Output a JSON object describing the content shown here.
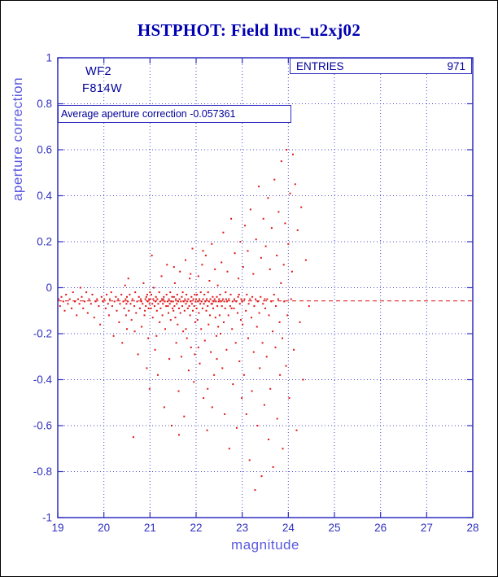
{
  "title": "HSTPHOT: Field lmc_u2xj02",
  "colors": {
    "title": "#0000b3",
    "axis": "#2f2fbf",
    "grid": "#4a4acf",
    "tick_label": "#2f2fbf",
    "axis_label": "#5a5ae0",
    "annotation": "#000099",
    "point": "#e11414",
    "average_line": "#e11414",
    "page_border": "#000000"
  },
  "stats_box": {
    "label": "ENTRIES",
    "value": "971"
  },
  "labels": {
    "detector": "WF2",
    "filter": "F814W",
    "average_text": "Average aperture correction -0.057361"
  },
  "chart_data": {
    "type": "scatter",
    "title": "HSTPHOT: Field lmc_u2xj02",
    "xlabel": "magnitude",
    "ylabel": "aperture correction",
    "xlim": [
      19,
      28
    ],
    "ylim": [
      -1,
      1
    ],
    "x_ticks": [
      19,
      20,
      21,
      22,
      23,
      24,
      25,
      26,
      27,
      28
    ],
    "x_tick_labels": [
      "19",
      "20",
      "21",
      "22",
      "23",
      "24",
      "25",
      "26",
      "27",
      "28"
    ],
    "y_ticks": [
      1,
      0.8,
      0.6,
      0.4,
      0.2,
      0,
      -0.2,
      -0.4,
      -0.6,
      -0.8,
      -1
    ],
    "y_tick_labels": [
      "1",
      "0.8",
      "0.6",
      "0.4",
      "0.2",
      "0",
      "-0.2",
      "-0.4",
      "-0.6",
      "-0.8",
      "-1"
    ],
    "grid": "dotted",
    "legend": "none",
    "entries": 971,
    "average_aperture_correction": -0.057361,
    "average_line": {
      "y": -0.057361,
      "style": "dashed",
      "color": "#e11414"
    },
    "annotations": [
      "WF2",
      "F814W",
      "Average aperture correction -0.057361",
      "ENTRIES 971"
    ],
    "points": [
      [
        19.02,
        -0.05
      ],
      [
        19.05,
        -0.08
      ],
      [
        19.08,
        -0.04
      ],
      [
        19.12,
        -0.06
      ],
      [
        19.15,
        -0.1
      ],
      [
        19.18,
        -0.03
      ],
      [
        19.22,
        -0.07
      ],
      [
        19.26,
        -0.05
      ],
      [
        19.3,
        -0.09
      ],
      [
        19.33,
        -0.02
      ],
      [
        19.37,
        -0.06
      ],
      [
        19.41,
        -0.12
      ],
      [
        19.44,
        -0.05
      ],
      [
        19.47,
        -0.07
      ],
      [
        19.49,
        0.0
      ],
      [
        19.52,
        -0.04
      ],
      [
        19.55,
        -0.09
      ],
      [
        19.58,
        -0.06
      ],
      [
        19.62,
        -0.02
      ],
      [
        19.65,
        -0.11
      ],
      [
        19.68,
        -0.05
      ],
      [
        19.72,
        -0.07
      ],
      [
        19.75,
        -0.03
      ],
      [
        19.79,
        -0.13
      ],
      [
        19.82,
        -0.06
      ],
      [
        19.85,
        -0.05
      ],
      [
        19.89,
        -0.08
      ],
      [
        19.92,
        -0.16
      ],
      [
        19.95,
        -0.04
      ],
      [
        19.98,
        -0.06
      ],
      [
        20.01,
        -0.05
      ],
      [
        20.04,
        -0.09
      ],
      [
        20.06,
        -0.03
      ],
      [
        20.09,
        -0.07
      ],
      [
        20.11,
        -0.12
      ],
      [
        20.13,
        -0.05
      ],
      [
        20.16,
        -0.02
      ],
      [
        20.18,
        -0.08
      ],
      [
        20.21,
        -0.21
      ],
      [
        20.23,
        -0.06
      ],
      [
        20.26,
        -0.04
      ],
      [
        20.28,
        -0.1
      ],
      [
        20.31,
        -0.05
      ],
      [
        20.33,
        -0.15
      ],
      [
        20.35,
        -0.07
      ],
      [
        20.38,
        -0.03
      ],
      [
        20.4,
        -0.24
      ],
      [
        20.42,
        -0.06
      ],
      [
        20.44,
        -0.09
      ],
      [
        20.46,
        0.01
      ],
      [
        20.47,
        -0.05
      ],
      [
        20.48,
        -0.12
      ],
      [
        20.49,
        -0.07
      ],
      [
        20.5,
        -0.04
      ],
      [
        20.5,
        -0.18
      ],
      [
        20.52,
        -0.06
      ],
      [
        20.54,
        -0.1
      ],
      [
        20.56,
        -0.03
      ],
      [
        20.58,
        -0.07
      ],
      [
        20.6,
        -0.14
      ],
      [
        20.62,
        -0.05
      ],
      [
        20.64,
        -0.65
      ],
      [
        20.66,
        -0.08
      ],
      [
        20.68,
        -0.02
      ],
      [
        20.7,
        -0.11
      ],
      [
        20.72,
        -0.06
      ],
      [
        20.74,
        -0.29
      ],
      [
        20.76,
        -0.04
      ],
      [
        20.78,
        -0.09
      ],
      [
        20.8,
        -0.05
      ],
      [
        20.82,
        -0.17
      ],
      [
        20.84,
        -0.07
      ],
      [
        20.86,
        0.02
      ],
      [
        20.88,
        -0.12
      ],
      [
        20.9,
        -0.05
      ],
      [
        20.91,
        -0.08
      ],
      [
        20.93,
        -0.35
      ],
      [
        20.94,
        -0.03
      ],
      [
        20.95,
        -0.06
      ],
      [
        20.96,
        -0.22
      ],
      [
        20.97,
        -0.09
      ],
      [
        20.98,
        -0.05
      ],
      [
        20.99,
        -0.44
      ],
      [
        20.99,
        -0.07
      ],
      [
        21.0,
        -0.02
      ],
      [
        20.53,
        0.04
      ],
      [
        20.67,
        -0.19
      ],
      [
        20.81,
        -0.06
      ],
      [
        20.89,
        -0.1
      ],
      [
        20.92,
        -0.04
      ],
      [
        21.01,
        -0.05
      ],
      [
        21.02,
        -0.09
      ],
      [
        21.03,
        -0.03
      ],
      [
        21.05,
        -0.07
      ],
      [
        21.06,
        -0.13
      ],
      [
        21.07,
        -0.05
      ],
      [
        21.08,
        0.0
      ],
      [
        21.1,
        -0.08
      ],
      [
        21.11,
        -0.27
      ],
      [
        21.12,
        -0.06
      ],
      [
        21.13,
        -0.04
      ],
      [
        21.15,
        -0.1
      ],
      [
        21.16,
        -0.05
      ],
      [
        21.17,
        -0.38
      ],
      [
        21.18,
        -0.07
      ],
      [
        21.2,
        -0.02
      ],
      [
        21.21,
        -0.15
      ],
      [
        21.22,
        -0.06
      ],
      [
        21.23,
        -0.09
      ],
      [
        21.25,
        0.05
      ],
      [
        21.26,
        -0.05
      ],
      [
        21.27,
        -0.12
      ],
      [
        21.28,
        -0.07
      ],
      [
        21.3,
        -0.04
      ],
      [
        21.31,
        -0.52
      ],
      [
        21.32,
        -0.06
      ],
      [
        21.33,
        -0.18
      ],
      [
        21.35,
        -0.08
      ],
      [
        21.36,
        -0.03
      ],
      [
        21.37,
        0.1
      ],
      [
        21.38,
        -0.06
      ],
      [
        21.4,
        -0.11
      ],
      [
        21.41,
        -0.05
      ],
      [
        21.42,
        -0.31
      ],
      [
        21.43,
        -0.07
      ],
      [
        21.44,
        -0.02
      ],
      [
        21.45,
        -0.14
      ],
      [
        21.46,
        -0.06
      ],
      [
        21.47,
        -0.6
      ],
      [
        21.48,
        -0.04
      ],
      [
        21.49,
        -0.09
      ],
      [
        21.04,
        0.14
      ],
      [
        21.14,
        -0.21
      ],
      [
        21.29,
        -0.05
      ],
      [
        21.39,
        -0.08
      ],
      [
        21.5,
        -0.06
      ],
      [
        21.51,
        -0.1
      ],
      [
        21.52,
        -0.04
      ],
      [
        21.53,
        -0.08
      ],
      [
        21.54,
        0.02
      ],
      [
        21.55,
        -0.13
      ],
      [
        21.56,
        -0.05
      ],
      [
        21.57,
        -0.24
      ],
      [
        21.58,
        -0.07
      ],
      [
        21.59,
        -0.03
      ],
      [
        21.6,
        -0.16
      ],
      [
        21.61,
        -0.06
      ],
      [
        21.62,
        -0.45
      ],
      [
        21.63,
        -0.09
      ],
      [
        21.64,
        -0.05
      ],
      [
        21.65,
        0.07
      ],
      [
        21.66,
        -0.11
      ],
      [
        21.67,
        -0.06
      ],
      [
        21.68,
        -0.3
      ],
      [
        21.69,
        -0.04
      ],
      [
        21.7,
        -0.08
      ],
      [
        21.71,
        -0.02
      ],
      [
        21.72,
        -0.19
      ],
      [
        21.73,
        -0.06
      ],
      [
        21.74,
        -0.56
      ],
      [
        21.75,
        -0.1
      ],
      [
        21.76,
        -0.05
      ],
      [
        21.77,
        0.12
      ],
      [
        21.78,
        -0.07
      ],
      [
        21.79,
        -0.03
      ],
      [
        21.8,
        -0.22
      ],
      [
        21.81,
        -0.06
      ],
      [
        21.82,
        -0.09
      ],
      [
        21.83,
        -0.05
      ],
      [
        21.84,
        -0.36
      ],
      [
        21.85,
        -0.08
      ],
      [
        21.86,
        0.04
      ],
      [
        21.87,
        -0.12
      ],
      [
        21.88,
        -0.06
      ],
      [
        21.89,
        -0.26
      ],
      [
        21.9,
        -0.04
      ],
      [
        21.91,
        -0.07
      ],
      [
        21.92,
        0.17
      ],
      [
        21.93,
        -0.1
      ],
      [
        21.94,
        -0.05
      ],
      [
        21.95,
        -0.41
      ],
      [
        21.96,
        -0.08
      ],
      [
        21.97,
        -0.03
      ],
      [
        21.98,
        -0.15
      ],
      [
        21.99,
        -0.06
      ],
      [
        21.52,
        0.09
      ],
      [
        21.63,
        -0.64
      ],
      [
        21.78,
        -0.18
      ],
      [
        21.88,
        0.06
      ],
      [
        21.97,
        -0.29
      ],
      [
        22.0,
        -0.05
      ],
      [
        22.01,
        -0.09
      ],
      [
        22.02,
        -0.03
      ],
      [
        22.03,
        -0.14
      ],
      [
        22.04,
        -0.06
      ],
      [
        22.05,
        0.05
      ],
      [
        22.06,
        -0.11
      ],
      [
        22.07,
        -0.05
      ],
      [
        22.08,
        -0.33
      ],
      [
        22.09,
        -0.07
      ],
      [
        22.1,
        -0.02
      ],
      [
        22.11,
        -0.18
      ],
      [
        22.12,
        -0.06
      ],
      [
        22.13,
        0.1
      ],
      [
        22.14,
        -0.09
      ],
      [
        22.15,
        -0.05
      ],
      [
        22.16,
        -0.48
      ],
      [
        22.17,
        -0.07
      ],
      [
        22.18,
        -0.03
      ],
      [
        22.19,
        -0.23
      ],
      [
        22.2,
        -0.06
      ],
      [
        22.21,
        0.14
      ],
      [
        22.22,
        -0.1
      ],
      [
        22.23,
        -0.05
      ],
      [
        22.24,
        -0.62
      ],
      [
        22.25,
        -0.08
      ],
      [
        22.26,
        -0.02
      ],
      [
        22.27,
        -0.16
      ],
      [
        22.28,
        -0.06
      ],
      [
        22.29,
        0.03
      ],
      [
        22.3,
        -0.12
      ],
      [
        22.31,
        -0.05
      ],
      [
        22.32,
        -0.28
      ],
      [
        22.33,
        -0.07
      ],
      [
        22.34,
        0.19
      ],
      [
        22.35,
        -0.52
      ],
      [
        22.36,
        -0.04
      ],
      [
        22.37,
        -0.09
      ],
      [
        22.38,
        -0.06
      ],
      [
        22.39,
        -0.38
      ],
      [
        22.4,
        -0.05
      ],
      [
        22.41,
        0.08
      ],
      [
        22.42,
        -0.13
      ],
      [
        22.43,
        -0.06
      ],
      [
        22.44,
        -0.21
      ],
      [
        22.45,
        -0.04
      ],
      [
        22.46,
        -0.08
      ],
      [
        22.47,
        0.01
      ],
      [
        22.48,
        -0.17
      ],
      [
        22.49,
        -0.06
      ],
      [
        22.05,
        -0.26
      ],
      [
        22.15,
        0.16
      ],
      [
        22.25,
        -0.44
      ],
      [
        22.35,
        -0.07
      ],
      [
        22.45,
        -0.31
      ],
      [
        22.5,
        -0.05
      ],
      [
        22.51,
        -0.12
      ],
      [
        22.52,
        -0.03
      ],
      [
        22.53,
        -0.2
      ],
      [
        22.54,
        -0.06
      ],
      [
        22.55,
        0.11
      ],
      [
        22.56,
        -0.08
      ],
      [
        22.57,
        -0.35
      ],
      [
        22.58,
        -0.05
      ],
      [
        22.59,
        0.24
      ],
      [
        22.6,
        -0.15
      ],
      [
        22.61,
        -0.06
      ],
      [
        22.62,
        -0.55
      ],
      [
        22.63,
        -0.09
      ],
      [
        22.64,
        -0.02
      ],
      [
        22.66,
        -0.27
      ],
      [
        22.67,
        -0.06
      ],
      [
        22.68,
        0.07
      ],
      [
        22.7,
        -0.12
      ],
      [
        22.71,
        -0.05
      ],
      [
        22.72,
        -0.7
      ],
      [
        22.74,
        -0.08
      ],
      [
        22.75,
        -0.03
      ],
      [
        22.76,
        0.3
      ],
      [
        22.78,
        -0.18
      ],
      [
        22.79,
        -0.06
      ],
      [
        22.8,
        -0.42
      ],
      [
        22.82,
        -0.09
      ],
      [
        22.83,
        -0.05
      ],
      [
        22.84,
        0.15
      ],
      [
        22.86,
        -0.24
      ],
      [
        22.87,
        -0.06
      ],
      [
        22.88,
        -0.61
      ],
      [
        22.9,
        -0.11
      ],
      [
        22.91,
        -0.04
      ],
      [
        22.92,
        0.04
      ],
      [
        22.94,
        -0.32
      ],
      [
        22.95,
        -0.07
      ],
      [
        22.96,
        0.2
      ],
      [
        22.97,
        -0.14
      ],
      [
        22.98,
        -0.05
      ],
      [
        22.99,
        -0.48
      ],
      [
        22.65,
        -0.05
      ],
      [
        22.77,
        -0.09
      ],
      [
        22.93,
        -0.03
      ],
      [
        23.0,
        -0.06
      ],
      [
        23.01,
        -0.16
      ],
      [
        23.02,
        0.09
      ],
      [
        23.04,
        -0.38
      ],
      [
        23.05,
        -0.05
      ],
      [
        23.06,
        0.27
      ],
      [
        23.08,
        -0.1
      ],
      [
        23.09,
        -0.55
      ],
      [
        23.1,
        -0.03
      ],
      [
        23.12,
        0.16
      ],
      [
        23.13,
        -0.22
      ],
      [
        23.14,
        -0.07
      ],
      [
        23.16,
        -0.75
      ],
      [
        23.17,
        -0.05
      ],
      [
        23.18,
        0.34
      ],
      [
        23.2,
        -0.13
      ],
      [
        23.21,
        -0.45
      ],
      [
        23.22,
        -0.04
      ],
      [
        23.24,
        0.06
      ],
      [
        23.25,
        -0.28
      ],
      [
        23.26,
        -0.08
      ],
      [
        23.28,
        -0.88
      ],
      [
        23.29,
        -0.05
      ],
      [
        23.3,
        0.21
      ],
      [
        23.32,
        -0.17
      ],
      [
        23.33,
        -0.6
      ],
      [
        23.34,
        -0.06
      ],
      [
        23.36,
        0.44
      ],
      [
        23.37,
        -0.11
      ],
      [
        23.38,
        -0.35
      ],
      [
        23.4,
        -0.04
      ],
      [
        23.41,
        0.13
      ],
      [
        23.42,
        -0.82
      ],
      [
        23.44,
        -0.24
      ],
      [
        23.45,
        -0.07
      ],
      [
        23.46,
        0.3
      ],
      [
        23.48,
        -0.51
      ],
      [
        23.49,
        -0.05
      ],
      [
        23.5,
        -0.09
      ],
      [
        23.51,
        0.18
      ],
      [
        23.53,
        -0.3
      ],
      [
        23.54,
        -0.05
      ],
      [
        23.56,
        0.39
      ],
      [
        23.57,
        -0.66
      ],
      [
        23.58,
        -0.12
      ],
      [
        23.6,
        0.08
      ],
      [
        23.61,
        -0.44
      ],
      [
        23.63,
        -0.06
      ],
      [
        23.64,
        0.26
      ],
      [
        23.66,
        -0.19
      ],
      [
        23.67,
        -0.78
      ],
      [
        23.69,
        -0.03
      ],
      [
        23.7,
        0.47
      ],
      [
        23.72,
        -0.26
      ],
      [
        23.73,
        -0.08
      ],
      [
        23.75,
        0.14
      ],
      [
        23.76,
        -0.57
      ],
      [
        23.78,
        -0.05
      ],
      [
        23.79,
        0.33
      ],
      [
        23.81,
        -0.15
      ],
      [
        23.82,
        -0.38
      ],
      [
        23.84,
        0.02
      ],
      [
        23.85,
        0.55
      ],
      [
        23.87,
        -0.22
      ],
      [
        23.88,
        -0.7
      ],
      [
        23.9,
        0.1
      ],
      [
        23.91,
        -0.06
      ],
      [
        23.93,
        0.28
      ],
      [
        23.95,
        -0.34
      ],
      [
        23.96,
        0.6
      ],
      [
        23.98,
        -0.12
      ],
      [
        24.0,
        0.19
      ],
      [
        24.02,
        -0.48
      ],
      [
        24.04,
        0.41
      ],
      [
        24.06,
        -0.05
      ],
      [
        24.08,
        0.07
      ],
      [
        24.1,
        0.58
      ],
      [
        24.12,
        -0.27
      ],
      [
        24.15,
        0.45
      ],
      [
        24.18,
        -0.62
      ],
      [
        24.2,
        0.25
      ],
      [
        24.25,
        -0.15
      ],
      [
        24.28,
        0.35
      ],
      [
        24.32,
        -0.4
      ],
      [
        24.38,
        0.12
      ],
      [
        24.45,
        -0.08
      ]
    ]
  }
}
